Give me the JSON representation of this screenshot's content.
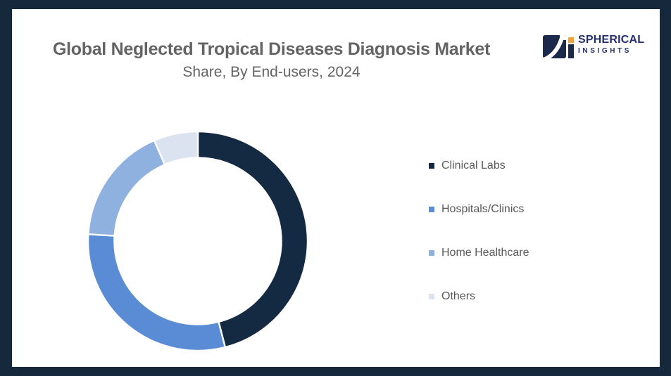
{
  "frame": {
    "border_color": "#15283c",
    "background": "#ffffff"
  },
  "header": {
    "title": "Global Neglected Tropical Diseases Diagnosis Market",
    "subtitle": "Share, By End-users, 2024",
    "text_color": "#646464"
  },
  "logo": {
    "line1": "SPHERICAL",
    "line2": "INSIGHTS",
    "text_color": "#232d6f",
    "mark_navy": "#1b2a4a",
    "mark_orange": "#f2a33c"
  },
  "chart_data": {
    "type": "pie",
    "subtype": "donut",
    "title": "Global Neglected Tropical Diseases Diagnosis Market Share, By End-users, 2024",
    "unit": "% share (estimated from arc angles)",
    "categories": [
      "Clinical Labs",
      "Hospitals/Clinics",
      "Home Healthcare",
      "Others"
    ],
    "values": [
      46,
      30,
      17.5,
      6.5
    ],
    "colors": [
      "#142a42",
      "#5a8cd5",
      "#8fb1e0",
      "#dbe3f0"
    ],
    "start_angle_deg": 0,
    "direction": "clockwise",
    "inner_radius_ratio": 0.76,
    "separator_color": "#ffffff",
    "legend_position": "right",
    "legend_text_color": "#595959",
    "data_labels": "none"
  }
}
